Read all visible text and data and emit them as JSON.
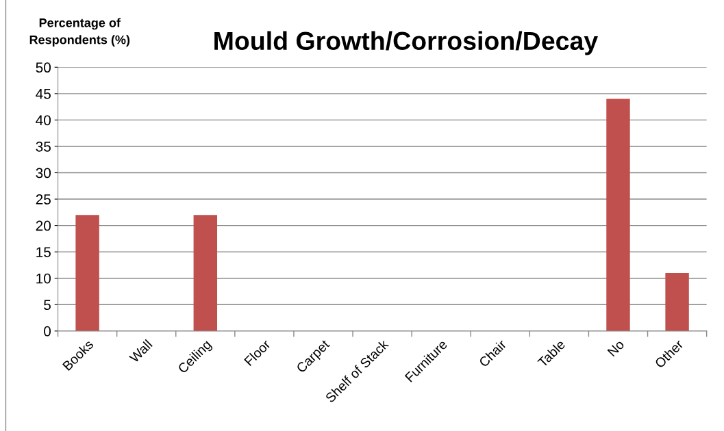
{
  "chart_data": {
    "type": "bar",
    "title": "Mould Growth/Corrosion/Decay",
    "ylabel": "Percentage of\nRespondents (%)",
    "categories": [
      "Books",
      "Wall",
      "Ceiling",
      "Floor",
      "Carpet",
      "Shelf of Stack",
      "Furniture",
      "Chair",
      "Table",
      "No",
      "Other"
    ],
    "values": [
      22,
      0,
      22,
      0,
      0,
      0,
      0,
      0,
      0,
      44,
      11
    ],
    "color": "#c0504d",
    "ylim": [
      0,
      50
    ],
    "yticks": [
      0,
      5,
      10,
      15,
      20,
      25,
      30,
      35,
      40,
      45,
      50
    ],
    "grid": "y"
  }
}
